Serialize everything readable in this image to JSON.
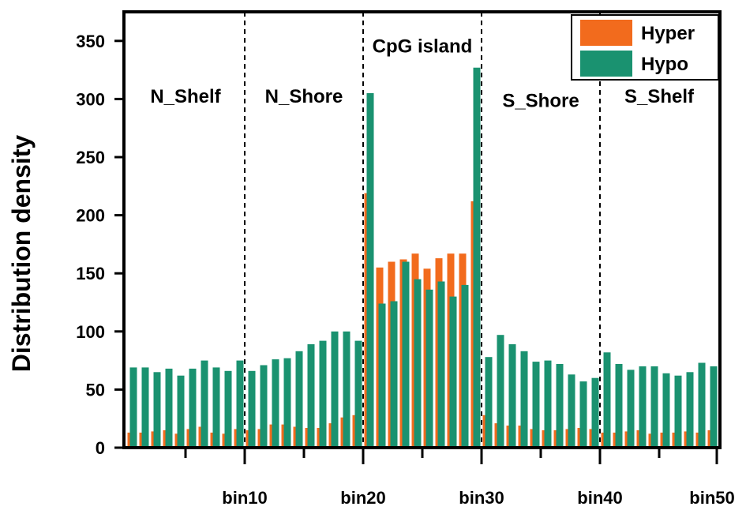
{
  "chart_data": {
    "type": "bar",
    "ylabel": "Distribution density",
    "xlabel": "",
    "ylim": [
      0,
      375
    ],
    "yticks": [
      0,
      50,
      100,
      150,
      200,
      250,
      300,
      350
    ],
    "xlim": [
      0,
      50
    ],
    "x_tick_labels": [
      {
        "bin": 10,
        "label": "bin10"
      },
      {
        "bin": 20,
        "label": "bin20"
      },
      {
        "bin": 30,
        "label": "bin30"
      },
      {
        "bin": 40,
        "label": "bin40"
      },
      {
        "bin": 50,
        "label": "bin50"
      }
    ],
    "x_minor_ticks": [
      5,
      15,
      25,
      35,
      45
    ],
    "region_boundaries": [
      10,
      20,
      30,
      40
    ],
    "regions": [
      {
        "label": "N_Shelf",
        "center": 5,
        "y": 297
      },
      {
        "label": "N_Shore",
        "center": 15,
        "y": 297
      },
      {
        "label": "CpG island",
        "center": 25,
        "y": 340
      },
      {
        "label": "S_Shore",
        "center": 35,
        "y": 293
      },
      {
        "label": "S_Shelf",
        "center": 45,
        "y": 297
      }
    ],
    "legend": "top-right",
    "grid": false,
    "series": [
      {
        "name": "Hyper",
        "color": "#f26b1d",
        "values": [
          13,
          13,
          14,
          15,
          12,
          16,
          18,
          13,
          12,
          16,
          15,
          16,
          20,
          20,
          18,
          17,
          17,
          21,
          26,
          28,
          219,
          155,
          160,
          162,
          167,
          154,
          163,
          167,
          167,
          212,
          28,
          21,
          19,
          19,
          16,
          15,
          15,
          16,
          17,
          16,
          13,
          13,
          14,
          15,
          12,
          13,
          13,
          14,
          13,
          15
        ]
      },
      {
        "name": "Hypo",
        "color": "#1a9270",
        "values": [
          69,
          69,
          65,
          68,
          62,
          68,
          75,
          69,
          66,
          75,
          66,
          71,
          76,
          77,
          83,
          89,
          92,
          100,
          100,
          92,
          305,
          124,
          126,
          160,
          145,
          136,
          143,
          130,
          140,
          327,
          78,
          97,
          89,
          83,
          74,
          75,
          72,
          63,
          57,
          60,
          82,
          72,
          67,
          70,
          70,
          64,
          62,
          65,
          73,
          70
        ]
      }
    ]
  }
}
